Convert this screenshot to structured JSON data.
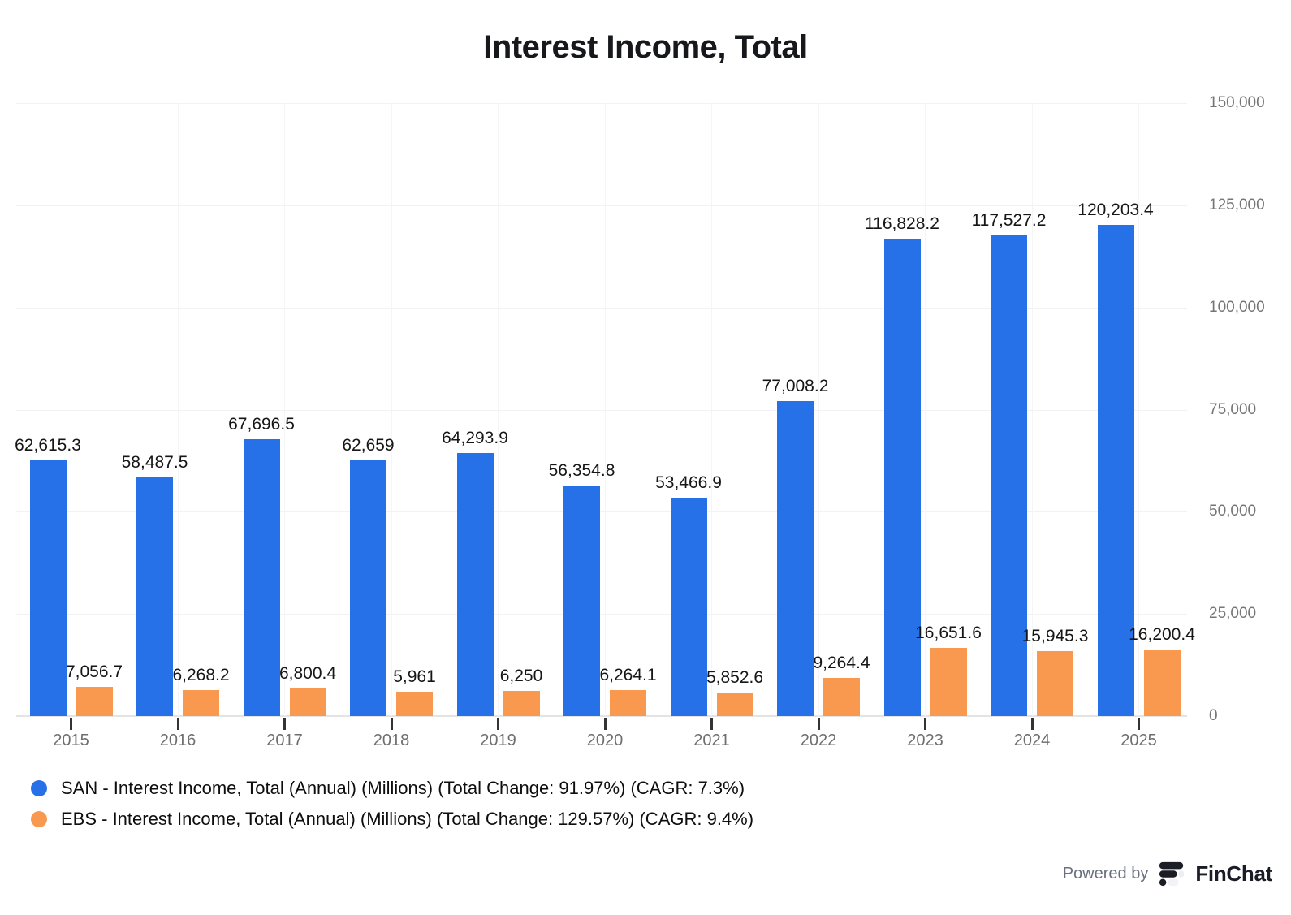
{
  "chart_data": {
    "type": "bar",
    "title": "Interest Income, Total",
    "categories": [
      "2015",
      "2016",
      "2017",
      "2018",
      "2019",
      "2020",
      "2021",
      "2022",
      "2023",
      "2024",
      "2025"
    ],
    "series": [
      {
        "name": "SAN",
        "color": "#2671E8",
        "values": [
          62615.3,
          58487.5,
          67696.5,
          62659,
          64293.9,
          56354.8,
          53466.9,
          77008.2,
          116828.2,
          117527.2,
          120203.4
        ],
        "labels": [
          "62,615.3",
          "58,487.5",
          "67,696.5",
          "62,659",
          "64,293.9",
          "56,354.8",
          "53,466.9",
          "77,008.2",
          "116,828.2",
          "117,527.2",
          "120,203.4"
        ]
      },
      {
        "name": "EBS",
        "color": "#F8994F",
        "values": [
          7056.7,
          6268.2,
          6800.4,
          5961,
          6250,
          6264.1,
          5852.6,
          9264.4,
          16651.6,
          15945.3,
          16200.4
        ],
        "labels": [
          "7,056.7",
          "6,268.2",
          "6,800.4",
          "5,961",
          "6,250",
          "6,264.1",
          "5,852.6",
          "9,264.4",
          "16,651.6",
          "15,945.3",
          "16,200.4"
        ]
      }
    ],
    "ylim": [
      0,
      150000
    ],
    "y_tick_interval": 25000,
    "y_tick_labels": [
      "150,000",
      "125,000",
      "100,000",
      "75,000",
      "50,000",
      "25,000",
      "0"
    ],
    "grid": true,
    "legend_position": "bottom-left"
  },
  "legend": {
    "items": [
      {
        "label": "SAN - Interest Income, Total (Annual) (Millions) (Total Change: 91.97%) (CAGR: 7.3%)",
        "color": "#2671E8"
      },
      {
        "label": "EBS - Interest Income, Total (Annual) (Millions) (Total Change: 129.57%) (CAGR: 9.4%)",
        "color": "#F8994F"
      }
    ]
  },
  "footer": {
    "powered_by": "Powered by",
    "brand": "FinChat"
  }
}
